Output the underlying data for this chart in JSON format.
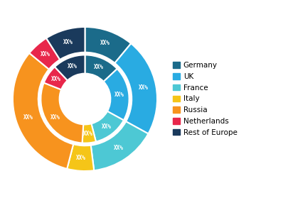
{
  "labels": [
    "Germany",
    "UK",
    "France",
    "Italy",
    "Russia",
    "Netherlands",
    "Rest of Europe"
  ],
  "colors": [
    "#1b6b8a",
    "#29abe2",
    "#4dc8d4",
    "#f5c518",
    "#f7931e",
    "#e8274b",
    "#1a3a5c"
  ],
  "inner_values": [
    13,
    20,
    13,
    5,
    30,
    7,
    12
  ],
  "outer_values": [
    11,
    22,
    15,
    6,
    32,
    5,
    9
  ],
  "label_text": "XX%",
  "label_color": "white",
  "label_fontsize": 5.5,
  "bg_color": "white",
  "legend_fontsize": 7.5,
  "legend_marker_size": 8
}
